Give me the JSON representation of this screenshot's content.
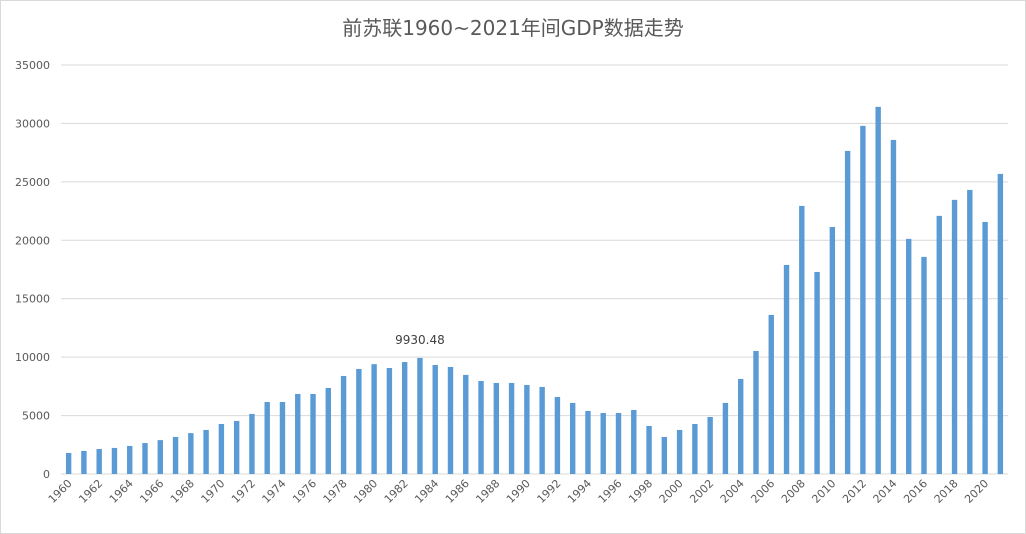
{
  "chart_data": {
    "type": "bar",
    "title": "前苏联1960~2021年间GDP数据走势",
    "xlabel": "",
    "ylabel": "",
    "ylim": [
      0,
      35000
    ],
    "yticks": [
      0,
      5000,
      10000,
      15000,
      20000,
      25000,
      30000,
      35000
    ],
    "grid": true,
    "legend": "none",
    "bar_color": "#5b9bd5",
    "categories": [
      "1960",
      "1961",
      "1962",
      "1963",
      "1964",
      "1965",
      "1966",
      "1967",
      "1968",
      "1969",
      "1970",
      "1971",
      "1972",
      "1973",
      "1974",
      "1975",
      "1976",
      "1977",
      "1978",
      "1979",
      "1980",
      "1981",
      "1982",
      "1983",
      "1984",
      "1985",
      "1986",
      "1987",
      "1988",
      "1989",
      "1990",
      "1991",
      "1992",
      "1993",
      "1994",
      "1995",
      "1996",
      "1997",
      "1998",
      "1999",
      "2000",
      "2001",
      "2002",
      "2003",
      "2004",
      "2005",
      "2006",
      "2007",
      "2008",
      "2009",
      "2010",
      "2011",
      "2012",
      "2013",
      "2014",
      "2015",
      "2016",
      "2017",
      "2018",
      "2019",
      "2020",
      "2021"
    ],
    "values": [
      1800,
      1970,
      2140,
      2230,
      2400,
      2650,
      2900,
      3170,
      3500,
      3770,
      4280,
      4540,
      5140,
      6160,
      6160,
      6850,
      6850,
      7360,
      8390,
      8990,
      9400,
      9070,
      9580,
      9930.48,
      9330,
      9160,
      8480,
      7960,
      7790,
      7790,
      7620,
      7450,
      6590,
      6080,
      5390,
      5220,
      5220,
      5480,
      4110,
      3170,
      3770,
      4280,
      4880,
      6080,
      8130,
      10530,
      13610,
      17890,
      22940,
      17290,
      21140,
      27650,
      29790,
      31420,
      28590,
      20120,
      18580,
      22090,
      23460,
      24310,
      21570,
      25680
    ],
    "annotations": [
      {
        "category": "1983",
        "text": "9930.48"
      }
    ]
  }
}
